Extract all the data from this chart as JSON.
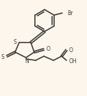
{
  "bg_color": "#fdf6ec",
  "line_color": "#3a3a3a",
  "lw": 1.2,
  "figsize": [
    1.27,
    1.4
  ],
  "dpi": 100,
  "xlim": [
    0,
    127
  ],
  "ylim": [
    0,
    140
  ]
}
